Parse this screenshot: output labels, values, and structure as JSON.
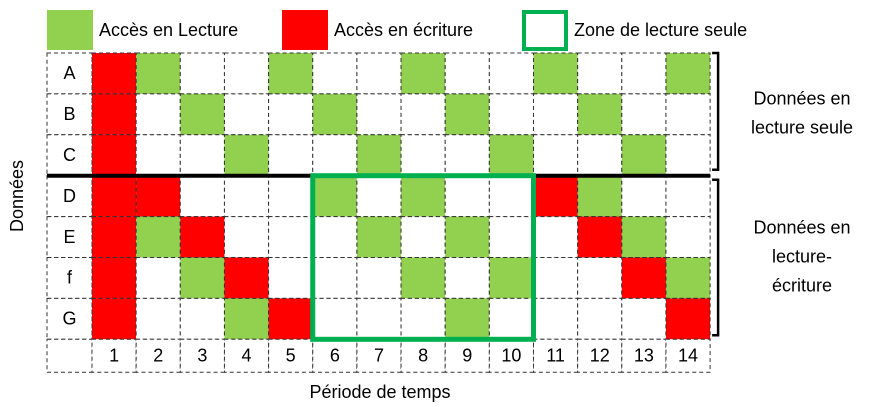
{
  "legend": [
    {
      "label": "Accès en Lecture",
      "color": "#92d050",
      "kind": "read"
    },
    {
      "label": "Accès en écriture",
      "color": "#ff0000",
      "kind": "write"
    },
    {
      "label": "Zone de lecture seule",
      "color": "#00b050",
      "kind": "zone"
    }
  ],
  "y_label": "Données",
  "x_label": "Période de temps",
  "columns": [
    1,
    2,
    3,
    4,
    5,
    6,
    7,
    8,
    9,
    10,
    11,
    12,
    13,
    14
  ],
  "rows": [
    {
      "label": "A",
      "cells": [
        "write",
        "read",
        null,
        null,
        "read",
        null,
        null,
        "read",
        null,
        null,
        "read",
        null,
        null,
        "read"
      ]
    },
    {
      "label": "B",
      "cells": [
        "write",
        null,
        "read",
        null,
        null,
        "read",
        null,
        null,
        "read",
        null,
        null,
        "read",
        null,
        null
      ]
    },
    {
      "label": "C",
      "cells": [
        "write",
        null,
        null,
        "read",
        null,
        null,
        "read",
        null,
        null,
        "read",
        null,
        null,
        "read",
        null
      ]
    },
    {
      "label": "D",
      "cells": [
        "write",
        "write",
        null,
        null,
        null,
        "read",
        null,
        "read",
        null,
        null,
        "write",
        "read",
        null,
        null
      ]
    },
    {
      "label": "E",
      "cells": [
        "write",
        "read",
        "write",
        null,
        null,
        null,
        "read",
        null,
        "read",
        null,
        null,
        "write",
        "read",
        null
      ]
    },
    {
      "label": "f",
      "cells": [
        "write",
        null,
        "read",
        "write",
        null,
        null,
        null,
        "read",
        null,
        "read",
        null,
        null,
        "write",
        "read"
      ]
    },
    {
      "label": "G",
      "cells": [
        "write",
        null,
        null,
        "read",
        "write",
        null,
        null,
        null,
        "read",
        null,
        null,
        null,
        null,
        "write"
      ]
    }
  ],
  "groups": [
    {
      "lines": [
        "Données en",
        "lecture seule"
      ]
    },
    {
      "lines": [
        "Données en",
        "lecture-",
        "écriture"
      ]
    }
  ]
}
